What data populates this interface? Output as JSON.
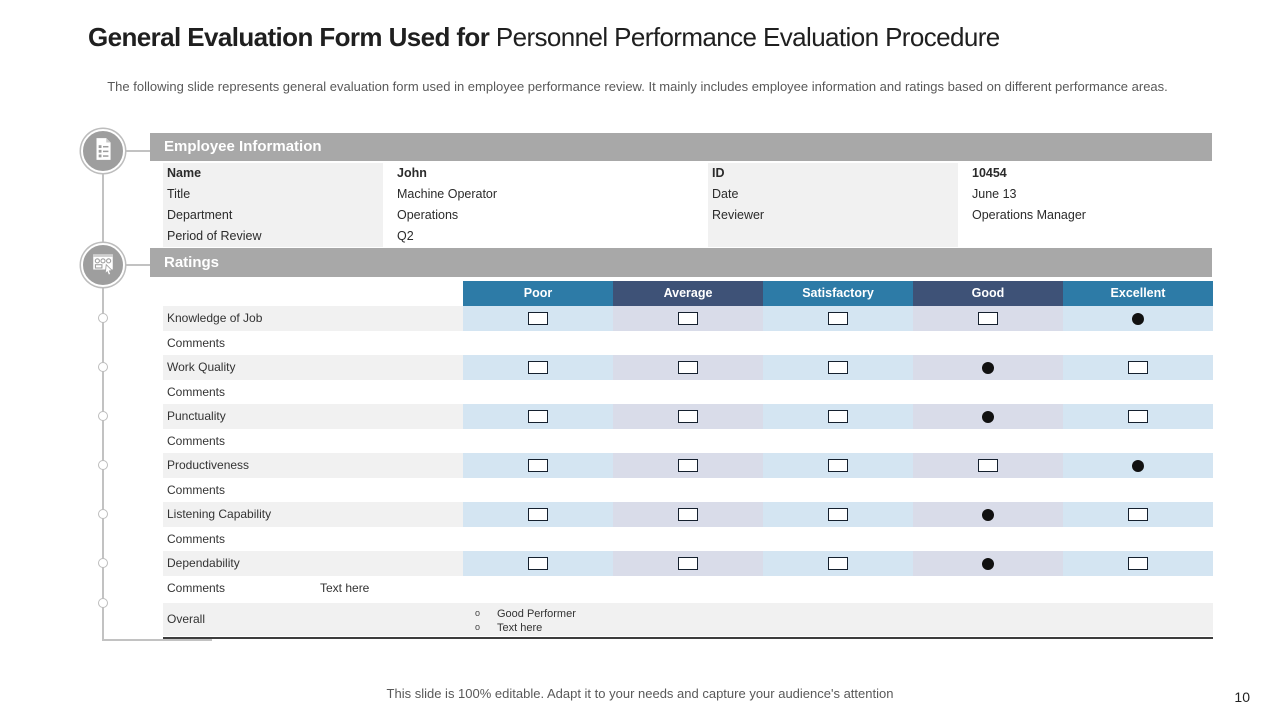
{
  "title": {
    "lead": "General Evaluation Form Used for ",
    "rest": "Personnel Performance Evaluation Procedure"
  },
  "subtitle": "The following slide represents general evaluation form used in employee performance review. It mainly includes employee information and ratings based on different performance areas.",
  "employee_info": {
    "header": "Employee Information",
    "rows": [
      {
        "label": "Name",
        "value": "John",
        "label2": "ID",
        "value2": "10454",
        "bold": true
      },
      {
        "label": "Title",
        "value": "Machine Operator",
        "label2": "Date",
        "value2": "June 13",
        "bold": false
      },
      {
        "label": "Department",
        "value": "Operations",
        "label2": "Reviewer",
        "value2": "Operations Manager",
        "bold": false
      },
      {
        "label": "Period of Review",
        "value": "Q2",
        "label2": "",
        "value2": "",
        "bold": false
      }
    ]
  },
  "ratings": {
    "header": "Ratings",
    "columns": [
      {
        "label": "Poor",
        "header_color": "#2d7ba7",
        "cell_color": "#d4e5f2"
      },
      {
        "label": "Average",
        "header_color": "#3e5277",
        "cell_color": "#d9dce9"
      },
      {
        "label": "Satisfactory",
        "header_color": "#2d7ba7",
        "cell_color": "#d4e5f2"
      },
      {
        "label": "Good",
        "header_color": "#3e5277",
        "cell_color": "#d9dce9"
      },
      {
        "label": "Excellent",
        "header_color": "#2d7ba7",
        "cell_color": "#d4e5f2"
      }
    ],
    "comments_label": "Comments",
    "rows": [
      {
        "label": "Knowledge of Job",
        "selected": "Excellent",
        "comment": ""
      },
      {
        "label": "Work Quality",
        "selected": "Good",
        "comment": ""
      },
      {
        "label": "Punctuality",
        "selected": "Good",
        "comment": ""
      },
      {
        "label": "Productiveness",
        "selected": "Excellent",
        "comment": ""
      },
      {
        "label": "Listening Capability",
        "selected": "Good",
        "comment": ""
      },
      {
        "label": "Dependability",
        "selected": "Good",
        "comment": "Text here"
      }
    ],
    "overall": {
      "label": "Overall",
      "bullets": [
        "Good Performer",
        "Text here"
      ]
    }
  },
  "footer": {
    "note": "This slide is 100% editable. Adapt it to your needs and capture your audience's attention",
    "page_number": "10"
  },
  "colors": {
    "section_bar": "#a8a8a8",
    "label_bg": "#f1f1f1",
    "header_blue": "#2d7ba7",
    "header_navy": "#3e5277",
    "cell_blue": "#d4e5f2",
    "cell_lavender": "#d9dce9",
    "icon_circle": "#9e9e9e"
  }
}
